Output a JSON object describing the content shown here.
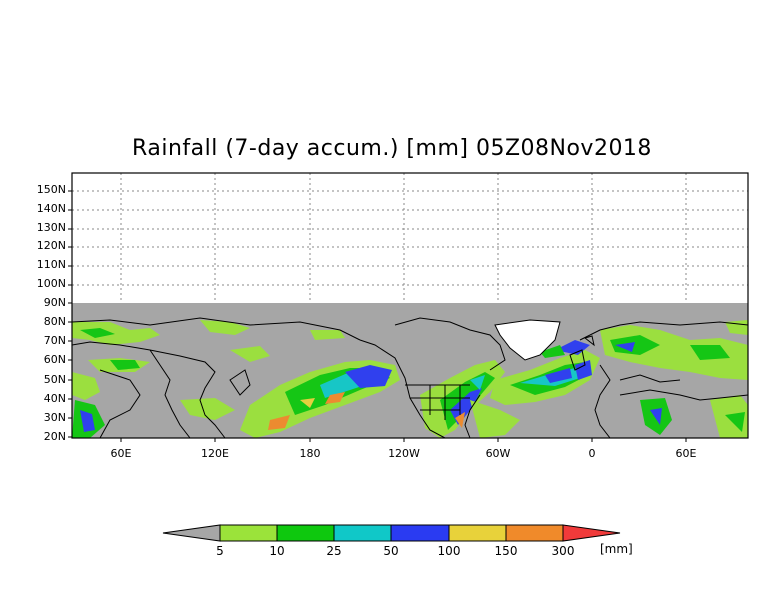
{
  "title": "Rainfall (7-day accum.) [mm] 05Z08Nov2018",
  "lat_labels": [
    "150N",
    "140N",
    "130N",
    "120N",
    "110N",
    "100N",
    "90N",
    "80N",
    "70N",
    "60N",
    "50N",
    "40N",
    "30N",
    "20N"
  ],
  "lon_labels": [
    "60E",
    "120E",
    "180",
    "120W",
    "60W",
    "0",
    "60E"
  ],
  "colorbar": {
    "levels": [
      "5",
      "10",
      "25",
      "50",
      "100",
      "150",
      "300"
    ],
    "colors": [
      "#a6a6a6",
      "#9be33a",
      "#0ec80e",
      "#10c8c8",
      "#2a3bf2",
      "#e8d23a",
      "#f08a2a",
      "#f03a3a"
    ],
    "units": "[mm]"
  },
  "map_colors": {
    "background": "#a6a6a6",
    "outline": "#000000"
  }
}
